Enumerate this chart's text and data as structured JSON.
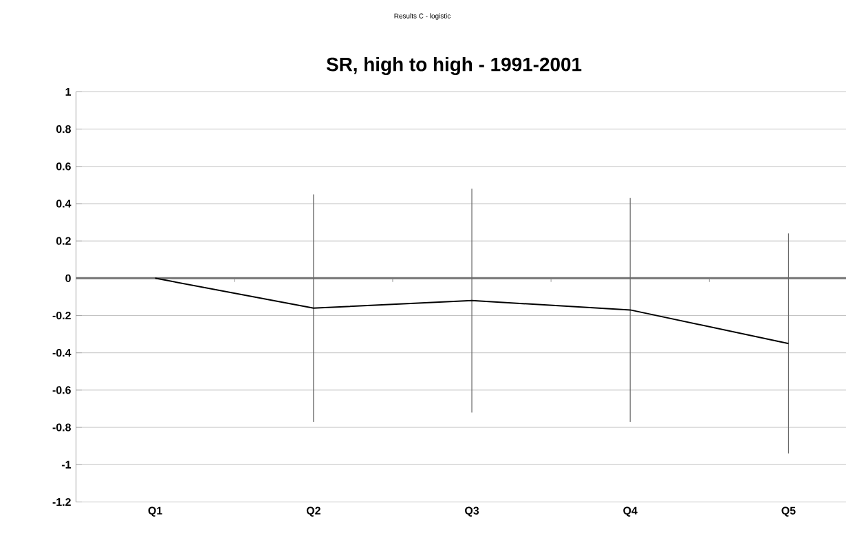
{
  "chart_data": {
    "type": "line",
    "title": "SR, high to high - 1991-2001",
    "subtitle": "Results C - logistic",
    "categories": [
      "Q1",
      "Q2",
      "Q3",
      "Q4",
      "Q5"
    ],
    "series": [
      {
        "color": "#000000",
        "values": [
          0,
          -0.16,
          -0.12,
          -0.17,
          -0.35
        ],
        "errors": [
          null,
          0.61,
          0.6,
          0.6,
          0.59
        ]
      }
    ],
    "ylim": [
      -1.2,
      1
    ],
    "yticks": [
      -1.2,
      -1,
      -0.8,
      -0.6,
      -0.4,
      -0.2,
      0,
      0.2,
      0.4,
      0.6,
      0.8,
      1
    ],
    "grid": "y"
  }
}
